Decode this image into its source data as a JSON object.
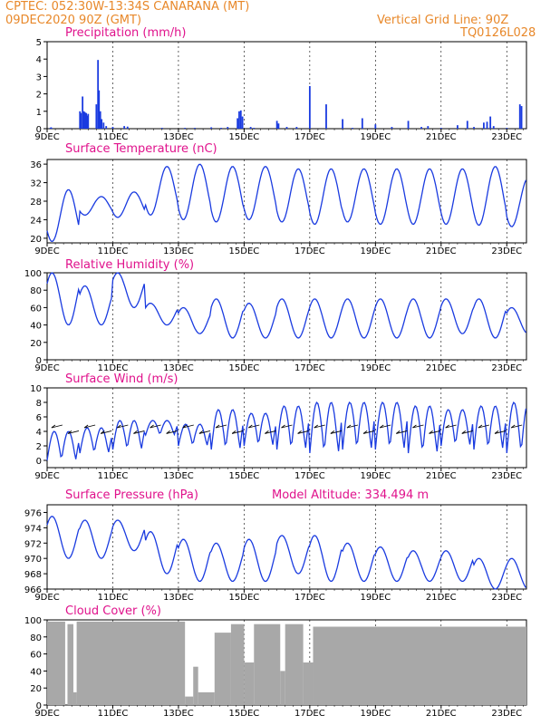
{
  "header": {
    "line1": "CPTEC:   052:30W-13:34S   CANARANA (MT)",
    "line2": "09DEC2020 90Z (GMT)",
    "grid_note": "Vertical Grid Line: 90Z",
    "code": "TQ0126L028"
  },
  "x_labels": [
    "9DEC",
    "11DEC",
    "13DEC",
    "15DEC",
    "17DEC",
    "19DEC",
    "21DEC",
    "23DEC"
  ],
  "colors": {
    "header": "#e8882a",
    "title": "#e0128c",
    "series": "#1a3be0",
    "cloud": "#a8a8a8"
  },
  "chart_data": [
    {
      "type": "bar",
      "title": "Precipitation (mm/h)",
      "ylim": [
        0,
        5
      ],
      "yticks": [
        0,
        1,
        2,
        3,
        4,
        5
      ],
      "x": [
        0.1,
        0.12,
        0.14,
        1.0,
        1.03,
        1.08,
        1.12,
        1.15,
        1.19,
        1.22,
        1.25,
        1.5,
        1.55,
        1.58,
        1.62,
        1.66,
        1.72,
        1.8,
        2.0,
        2.35,
        2.45,
        3.5,
        4.2,
        4.5,
        5.0,
        5.3,
        5.5,
        5.8,
        5.85,
        5.9,
        5.95,
        6.2,
        6.3,
        7.0,
        7.05,
        7.3,
        7.6,
        8.0,
        8.5,
        9.0,
        9.3,
        9.6,
        10.0,
        10.5,
        11.0,
        11.4,
        11.6,
        12.0,
        12.5,
        12.8,
        13.0,
        13.3,
        13.4,
        13.5,
        13.6,
        14.0,
        14.4,
        14.45
      ],
      "values": [
        0.05,
        0.08,
        0.04,
        1.0,
        0.9,
        1.85,
        1.0,
        0.95,
        0.9,
        0.75,
        0.85,
        1.4,
        3.95,
        2.2,
        1.0,
        0.55,
        0.35,
        0.15,
        0.1,
        0.15,
        0.12,
        0.05,
        0.05,
        0.05,
        0.08,
        0.05,
        0.1,
        0.6,
        1.0,
        1.05,
        0.7,
        0.1,
        0.05,
        0.45,
        0.3,
        0.1,
        0.1,
        2.45,
        1.4,
        0.55,
        0.05,
        0.6,
        0.25,
        0.1,
        0.45,
        0.1,
        0.15,
        0.05,
        0.2,
        0.45,
        0.1,
        0.35,
        0.4,
        0.7,
        0.15,
        0.05,
        1.4,
        1.3
      ]
    },
    {
      "type": "line",
      "title": "Surface Temperature (nC)",
      "ylim": [
        19,
        37
      ],
      "yticks": [
        20,
        24,
        28,
        32,
        36
      ],
      "min_value": 19.3,
      "base_min": 22.5,
      "base_max": 29.5,
      "series": [
        {
          "values_note": "diurnal cycle",
          "min_day": [
            19.3,
            25.0,
            24.5,
            25.0,
            24.0,
            23.5,
            24.0,
            23.5,
            23.0,
            23.5,
            23.0,
            23.0,
            23.0,
            22.8,
            22.5
          ],
          "max_day": [
            30.5,
            29.0,
            30.0,
            35.5,
            36.0,
            35.5,
            35.5,
            35.0,
            35.0,
            35.0,
            35.0,
            35.0,
            35.0,
            35.5,
            33.0
          ]
        }
      ]
    },
    {
      "type": "line",
      "title": "Relative Humidity (%)",
      "ylim": [
        0,
        100
      ],
      "yticks": [
        0,
        20,
        40,
        60,
        80,
        100
      ],
      "series": [
        {
          "min_day": [
            40,
            40,
            60,
            40,
            30,
            25,
            25,
            25,
            25,
            25,
            25,
            25,
            30,
            25,
            30
          ],
          "max_day": [
            100,
            85,
            100,
            65,
            60,
            70,
            65,
            70,
            70,
            70,
            70,
            70,
            70,
            70,
            60
          ]
        }
      ]
    },
    {
      "type": "line",
      "title": "Surface Wind (m/s)",
      "ylim": [
        -1,
        10
      ],
      "yticks": [
        0,
        2,
        4,
        6,
        8,
        10
      ],
      "series": [
        {
          "min_day": [
            0,
            1,
            1.5,
            3.5,
            2,
            1.5,
            2,
            1.5,
            1,
            1.5,
            1.5,
            1,
            2,
            1.5,
            1
          ],
          "max_day": [
            4,
            4.5,
            5.5,
            5.5,
            5,
            7,
            6.5,
            7.5,
            8,
            8,
            8,
            7.5,
            7,
            7.5,
            8
          ]
        }
      ]
    },
    {
      "type": "line",
      "title": "Surface Pressure (hPa)",
      "subtitle": "Model Altitude: 334.494 m",
      "ylim": [
        966,
        977
      ],
      "yticks": [
        966,
        968,
        970,
        972,
        974,
        976
      ],
      "series": [
        {
          "min_day": [
            970,
            970,
            971,
            968,
            967,
            967,
            967,
            968,
            967,
            967,
            967,
            967,
            967,
            966,
            966
          ],
          "max_day": [
            975.5,
            975,
            975,
            973.5,
            972.5,
            972,
            972.5,
            973,
            973,
            972,
            971.5,
            971,
            971,
            970,
            970
          ]
        }
      ]
    },
    {
      "type": "area",
      "title": "Cloud Cover (%)",
      "ylim": [
        0,
        100
      ],
      "yticks": [
        0,
        20,
        40,
        60,
        80,
        100
      ],
      "levels_note": "high cloud cover first 4 days, drop around 15DEC, then high",
      "segments": [
        {
          "from": 0.0,
          "to": 0.55,
          "level": 98
        },
        {
          "from": 0.55,
          "to": 0.62,
          "level": 0
        },
        {
          "from": 0.62,
          "to": 0.8,
          "level": 95
        },
        {
          "from": 0.8,
          "to": 0.9,
          "level": 15
        },
        {
          "from": 0.9,
          "to": 4.2,
          "level": 98
        },
        {
          "from": 4.2,
          "to": 4.45,
          "level": 10
        },
        {
          "from": 4.45,
          "to": 4.6,
          "level": 45
        },
        {
          "from": 4.6,
          "to": 5.1,
          "level": 15
        },
        {
          "from": 5.1,
          "to": 5.6,
          "level": 85
        },
        {
          "from": 5.6,
          "to": 6.0,
          "level": 95
        },
        {
          "from": 6.0,
          "to": 6.3,
          "level": 50
        },
        {
          "from": 6.3,
          "to": 7.1,
          "level": 95
        },
        {
          "from": 7.1,
          "to": 7.25,
          "level": 40
        },
        {
          "from": 7.25,
          "to": 7.8,
          "level": 95
        },
        {
          "from": 7.8,
          "to": 8.1,
          "level": 50
        },
        {
          "from": 8.1,
          "to": 14.6,
          "level": 92
        }
      ]
    }
  ]
}
